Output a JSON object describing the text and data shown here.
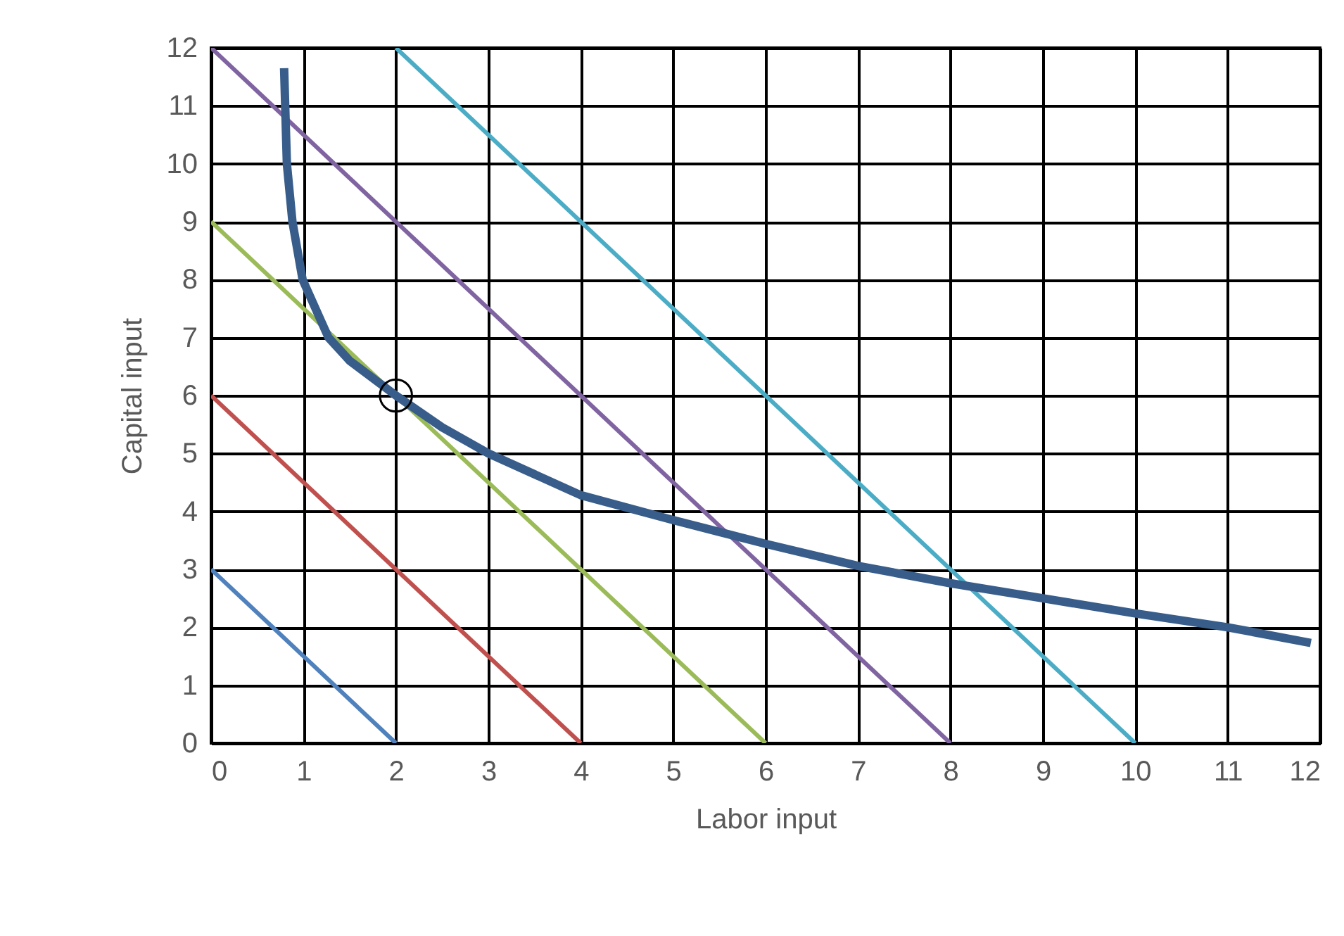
{
  "chart_data": {
    "type": "line",
    "xlabel": "Labor input",
    "ylabel": "Capital input",
    "xlim": [
      0,
      12
    ],
    "ylim": [
      0,
      12
    ],
    "xticks": [
      0,
      1,
      2,
      3,
      4,
      5,
      6,
      7,
      8,
      9,
      10,
      11,
      12
    ],
    "yticks": [
      0,
      1,
      2,
      3,
      4,
      5,
      6,
      7,
      8,
      9,
      10,
      11,
      12
    ],
    "grid": true,
    "legend": false,
    "marker": "none",
    "line_style": "solid",
    "series": [
      {
        "color": "#4f81bd",
        "x": [
          0,
          2
        ],
        "values": [
          3,
          0
        ]
      },
      {
        "color": "#c0504d",
        "x": [
          0,
          4
        ],
        "values": [
          6,
          0
        ]
      },
      {
        "color": "#9bbb59",
        "x": [
          0,
          6
        ],
        "values": [
          9,
          0
        ]
      },
      {
        "color": "#8064a2",
        "x": [
          0,
          8
        ],
        "values": [
          12,
          0
        ]
      },
      {
        "color": "#4bacc6",
        "x": [
          2,
          10
        ],
        "values": [
          12,
          0
        ]
      },
      {
        "color": "#385d8a",
        "x": [
          0.79,
          0.82,
          0.88,
          0.99,
          1.27,
          1.5,
          2,
          2.5,
          3,
          4,
          5,
          6,
          7,
          8,
          9,
          10,
          11,
          11.9
        ],
        "values": [
          11.65,
          10,
          9,
          8,
          7,
          6.6,
          6,
          5.45,
          5,
          4.28,
          3.85,
          3.44,
          3.06,
          2.76,
          2.5,
          2.24,
          2,
          1.73
        ]
      },
      {
        "type": "scatter",
        "color": "#000000",
        "marker": "circle",
        "x": [
          2
        ],
        "values": [
          6
        ]
      }
    ]
  }
}
